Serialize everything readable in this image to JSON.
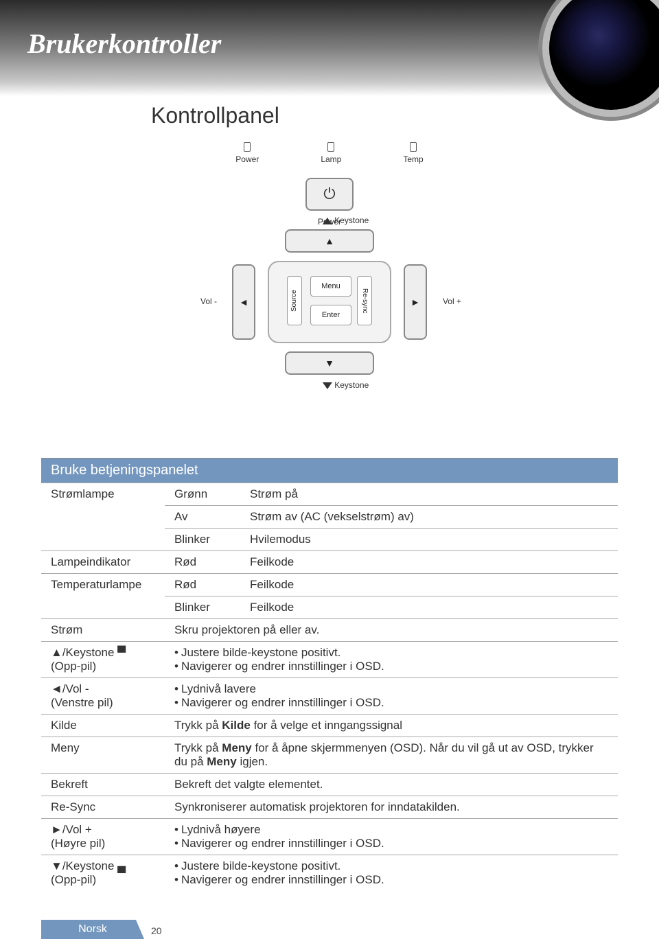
{
  "header": {
    "title": "Brukerkontroller",
    "subtitle": "Kontrollpanel"
  },
  "diagram": {
    "leds": [
      "Power",
      "Lamp",
      "Temp"
    ],
    "power_button_label": "Power",
    "keystone_label": "Keystone",
    "vol_minus": "Vol -",
    "vol_plus": "Vol +",
    "menu": "Menu",
    "enter": "Enter",
    "source": "Source",
    "resync": "Re-sync",
    "arrow_up": "▲",
    "arrow_down": "▼",
    "arrow_left": "◄",
    "arrow_right": "►"
  },
  "table": {
    "header": "Bruke betjeningspanelet",
    "rows": [
      {
        "c1": "",
        "c2": "Grønn",
        "c3": "Strøm på"
      },
      {
        "c1": "Strømlampe",
        "c2": "Av",
        "c3": "Strøm av (AC (vekselstrøm) av)"
      },
      {
        "c1": "",
        "c2": "Blinker",
        "c3": "Hvilemodus"
      },
      {
        "c1": "Lampeindikator",
        "c2": "Rød",
        "c3": "Feilkode"
      },
      {
        "c1": "",
        "c2": "Rød",
        "c3": "Feilkode"
      },
      {
        "c1": "Temperaturlampe",
        "c2": "Blinker",
        "c3": "Feilkode"
      },
      {
        "c1": "Strøm",
        "c3": "Skru projektoren på eller av."
      },
      {
        "c1": "▲/Keystone ▀\n(Opp-pil)",
        "c3_list": [
          "Justere bilde-keystone positivt.",
          "Navigerer og endrer innstillinger i OSD."
        ]
      },
      {
        "c1": "◄/Vol -\n(Venstre pil)",
        "c3_list": [
          "Lydnivå lavere",
          "Navigerer og endrer innstillinger i OSD."
        ]
      },
      {
        "c1": "Kilde",
        "c3_html": "Trykk på <b>Kilde</b> for å velge et inngangssignal"
      },
      {
        "c1": "Meny",
        "c3_html": "Trykk på <b>Meny</b> for å åpne skjermmenyen (OSD). Når du vil gå ut av OSD, trykker du på <b>Meny</b> igjen."
      },
      {
        "c1": "Bekreft",
        "c3": "Bekreft det valgte elementet."
      },
      {
        "c1": "Re-Sync",
        "c3": "Synkroniserer automatisk projektoren for inndatakilden."
      },
      {
        "c1": "►/Vol +\n(Høyre pil)",
        "c3_list": [
          "Lydnivå høyere",
          "Navigerer og endrer innstillinger i OSD."
        ]
      },
      {
        "c1": "▼/Keystone ▄\n(Opp-pil)",
        "c3_list": [
          "Justere bilde-keystone positivt.",
          "Navigerer og endrer innstillinger i OSD."
        ]
      }
    ]
  },
  "footer": {
    "label": "Norsk",
    "page": "20"
  },
  "colors": {
    "accent": "#7396be",
    "header_dark": "#2b2b2b",
    "text": "#333333"
  }
}
